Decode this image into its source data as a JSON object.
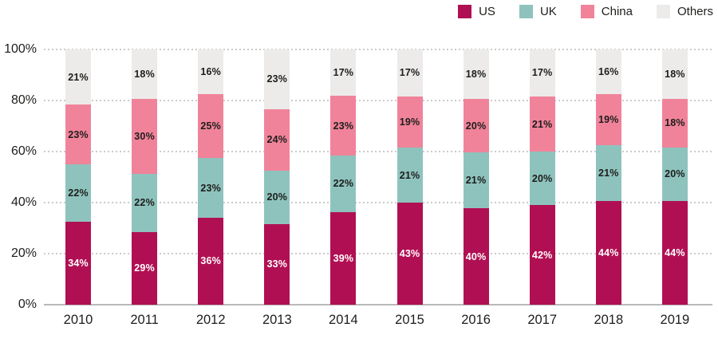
{
  "chart_data": {
    "type": "bar",
    "stacked": true,
    "orientation": "vertical",
    "categories": [
      "2010",
      "2011",
      "2012",
      "2013",
      "2014",
      "2015",
      "2016",
      "2017",
      "2018",
      "2019"
    ],
    "series": [
      {
        "name": "US",
        "color": "#b01053",
        "label_color": "#ffffff",
        "values": [
          34,
          29,
          36,
          33,
          39,
          43,
          40,
          42,
          44,
          44
        ]
      },
      {
        "name": "UK",
        "color": "#8ec3bd",
        "label_color": "#1d1d1b",
        "values": [
          22,
          22,
          23,
          20,
          22,
          21,
          21,
          20,
          21,
          20
        ]
      },
      {
        "name": "China",
        "color": "#f0839a",
        "label_color": "#1d1d1b",
        "values": [
          23,
          30,
          25,
          24,
          23,
          19,
          20,
          21,
          19,
          18
        ]
      },
      {
        "name": "Others",
        "color": "#ecebe9",
        "label_color": "#1d1d1b",
        "values": [
          21,
          18,
          16,
          23,
          17,
          17,
          18,
          17,
          16,
          18
        ]
      }
    ],
    "value_suffix": "%",
    "ylim": [
      0,
      100
    ],
    "y_ticks": [
      {
        "value": 0,
        "label": "0%"
      },
      {
        "value": 20,
        "label": "20%"
      },
      {
        "value": 40,
        "label": "40%"
      },
      {
        "value": 60,
        "label": "60%"
      },
      {
        "value": 80,
        "label": "80%"
      },
      {
        "value": 100,
        "label": "100%"
      }
    ],
    "grid": "dotted-horizontal",
    "legend_position": "top-right",
    "title": "",
    "xlabel": "",
    "ylabel": ""
  },
  "style": {
    "text_color": "#1d1d1b",
    "gridline_color": "#cbcbcb",
    "axis_line_color": "#b9b9b9",
    "background": "#ffffff"
  }
}
